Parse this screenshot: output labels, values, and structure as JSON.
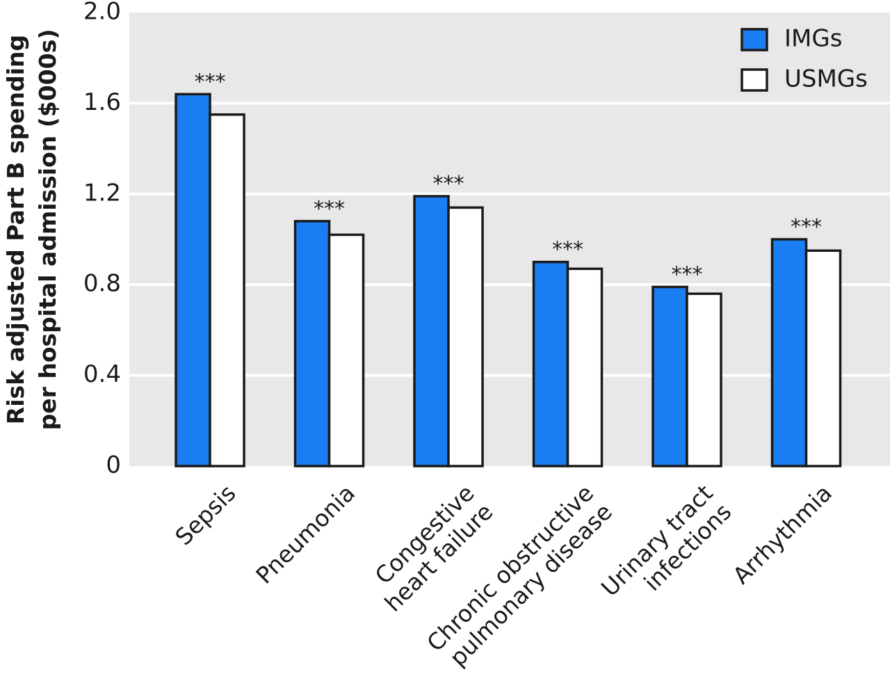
{
  "chart_data": {
    "type": "bar",
    "title": "",
    "xlabel": "",
    "ylabel_lines": [
      "Risk adjusted Part B spending",
      "per hospital admission ($000s)"
    ],
    "ylim": [
      0,
      2.0
    ],
    "yticks": [
      0,
      0.4,
      0.8,
      1.2,
      1.6,
      2.0
    ],
    "ytick_labels": [
      "0",
      "0.4",
      "0.8",
      "1.2",
      "1.6",
      "2.0"
    ],
    "grid": true,
    "legend_position": "top-right",
    "categories": [
      {
        "lines": [
          "Sepsis"
        ]
      },
      {
        "lines": [
          "Pneumonia"
        ]
      },
      {
        "lines": [
          "Congestive",
          "heart failure"
        ]
      },
      {
        "lines": [
          "Chronic obstructive",
          "pulmonary disease"
        ]
      },
      {
        "lines": [
          "Urinary tract",
          "infections"
        ]
      },
      {
        "lines": [
          "Arrhythmia"
        ]
      }
    ],
    "series": [
      {
        "name": "IMGs",
        "color": "#1a7ef2",
        "values": [
          1.64,
          1.08,
          1.19,
          0.9,
          0.79,
          1.0
        ]
      },
      {
        "name": "USMGs",
        "color": "#ffffff",
        "values": [
          1.55,
          1.02,
          1.14,
          0.87,
          0.76,
          0.95
        ]
      }
    ],
    "annotations": [
      "***",
      "***",
      "***",
      "***",
      "***",
      "***"
    ],
    "colors": {
      "plot_background": "#e8e8e8",
      "grid": "#ffffff",
      "bar_stroke": "#1a1a1a"
    }
  }
}
